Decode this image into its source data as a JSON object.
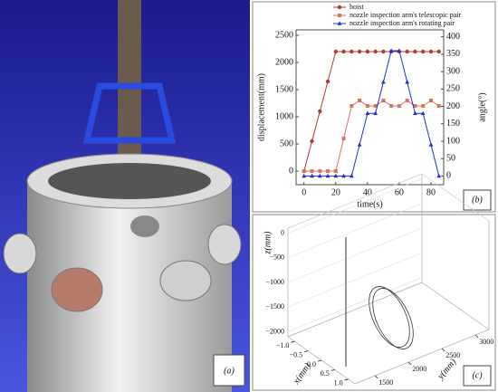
{
  "image_panel": {
    "label": "(a)"
  },
  "chart_data": [
    {
      "type": "line",
      "panel_label": "(b)",
      "xlabel": "time(s)",
      "ylabel": "displacement(mm)",
      "y2label": "angle(°)",
      "x": [
        0,
        5,
        10,
        15,
        20,
        25,
        30,
        35,
        40,
        45,
        50,
        55,
        60,
        65,
        70,
        75,
        80,
        85
      ],
      "xlim": [
        -5,
        88
      ],
      "xticks": [
        0,
        20,
        40,
        60,
        80
      ],
      "ylim": [
        -250,
        2600
      ],
      "yticks": [
        0,
        500,
        1000,
        1500,
        2000,
        2500
      ],
      "y2lim": [
        -25,
        420
      ],
      "y2ticks": [
        0,
        50,
        100,
        150,
        200,
        250,
        300,
        350,
        400
      ],
      "legend": "top",
      "series": [
        {
          "name": "hoist",
          "color": "#b03a2e",
          "marker": "circle",
          "values": [
            0,
            550,
            1100,
            1650,
            2200,
            2200,
            2200,
            2200,
            2200,
            2200,
            2200,
            2200,
            2200,
            2200,
            2200,
            2200,
            2200,
            2200
          ]
        },
        {
          "name": "nozzle inspection arm's telescopic pair",
          "color": "#e0705a",
          "marker": "square",
          "values": [
            0,
            0,
            0,
            0,
            0,
            600,
            1200,
            1300,
            1200,
            1200,
            1300,
            1200,
            1200,
            1300,
            1200,
            1200,
            1300,
            1200
          ]
        },
        {
          "name": "nozzle inspection arm's rotating pair",
          "color": "#1f2fd0",
          "marker": "triangle",
          "axis": "y2",
          "values": [
            0,
            0,
            0,
            0,
            0,
            0,
            0,
            90,
            180,
            180,
            270,
            360,
            360,
            270,
            180,
            180,
            90,
            0
          ]
        }
      ]
    },
    {
      "type": "line3d",
      "panel_label": "(c)",
      "xlabel": "x(mm)",
      "ylabel": "y(mm)",
      "zlabel": "z(mm)",
      "xlim": [
        -1.25,
        1.25
      ],
      "xticks": [
        {
          "value": -1.0,
          "label": "−1.0"
        },
        {
          "value": -0.5,
          "label": "−0.5"
        },
        {
          "value": 0,
          "label": "0.0"
        },
        0.5,
        {
          "value": 1.0,
          "label": "1.0"
        }
      ],
      "ylim": [
        1200,
        3200
      ],
      "yticks": [
        1500,
        2000,
        2500,
        3000
      ],
      "zlim": [
        -2100,
        100
      ],
      "zticks": [
        0,
        {
          "value": -500,
          "label": "−500"
        },
        {
          "value": -1000,
          "label": "−1000"
        },
        {
          "value": -1500,
          "label": "−1500"
        },
        {
          "value": -2000,
          "label": "−2000"
        }
      ]
    }
  ]
}
